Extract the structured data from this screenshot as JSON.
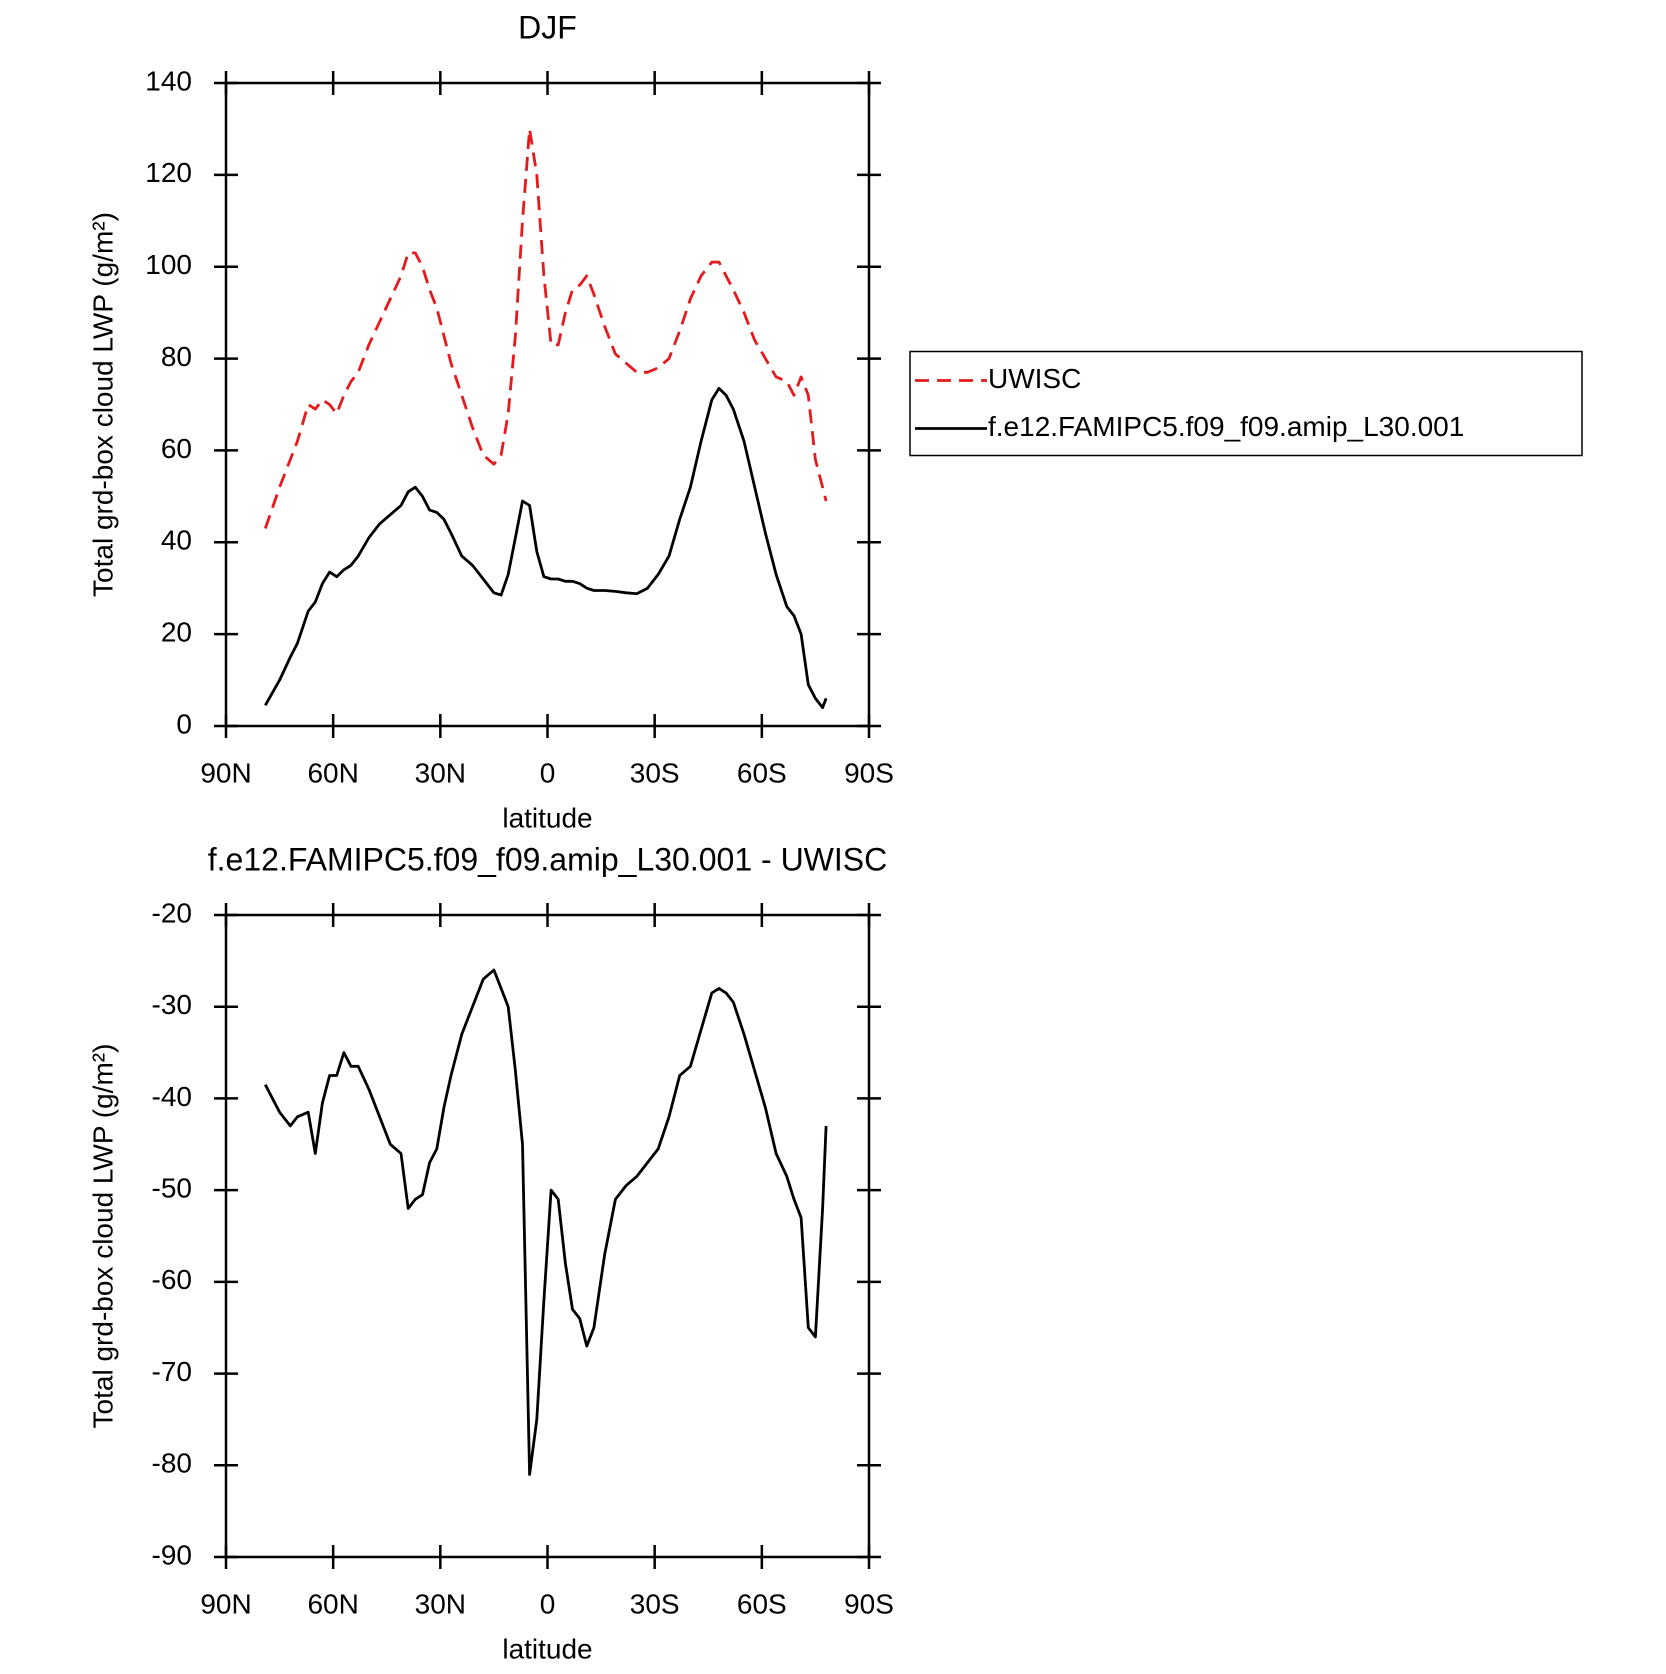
{
  "chart_data": [
    {
      "type": "line",
      "title": "DJF",
      "xlabel": "latitude",
      "ylabel": "Total grd-box cloud LWP (g/m²)",
      "x": [
        79,
        75,
        72,
        70,
        67,
        65,
        63,
        61,
        59,
        57,
        55,
        53,
        50,
        47,
        44,
        41,
        39,
        37,
        35,
        33,
        31,
        29,
        27,
        24,
        21,
        18,
        15,
        13,
        11,
        9,
        7,
        5,
        3,
        1,
        -1,
        -3,
        -5,
        -7,
        -9,
        -11,
        -13,
        -16,
        -19,
        -22,
        -25,
        -28,
        -31,
        -34,
        -37,
        -40,
        -43,
        -46,
        -48,
        -50,
        -52,
        -55,
        -58,
        -61,
        -64,
        -67,
        -69,
        -71,
        -73,
        -75,
        -77,
        -78
      ],
      "series": [
        {
          "name": "UWISC",
          "color": "#e41a1c",
          "dashed": true,
          "values": [
            43,
            52,
            58,
            62,
            70,
            69,
            71,
            70,
            68,
            72,
            75,
            77,
            83,
            88,
            93,
            98,
            103,
            103,
            100,
            95,
            91,
            85,
            79,
            72,
            65,
            59,
            57,
            59,
            68,
            85,
            110,
            130,
            120,
            98,
            83,
            83,
            90,
            95,
            96,
            98,
            94,
            87,
            81,
            79,
            77,
            77,
            78,
            80,
            86,
            93,
            98,
            101,
            101,
            98,
            95,
            90,
            84,
            80,
            76,
            75,
            72,
            76,
            72,
            58,
            52,
            49
          ]
        },
        {
          "name": "f.e12.FAMIPC5.f09_f09.amip_L30.001",
          "color": "#000000",
          "dashed": false,
          "values": [
            4.5,
            10,
            15,
            18,
            25,
            27,
            31,
            33.5,
            32.5,
            34,
            35,
            37,
            41,
            44,
            46,
            48,
            51,
            52,
            50,
            47,
            46.5,
            45,
            42,
            37,
            35,
            32,
            29,
            28.5,
            33,
            41,
            49,
            48,
            38,
            32.5,
            32,
            32,
            31.5,
            31.5,
            31,
            30,
            29.5,
            29.5,
            29.3,
            29,
            28.8,
            30,
            33,
            37,
            45,
            52,
            62,
            71,
            73.5,
            72,
            69,
            62,
            52,
            42,
            33,
            26,
            24,
            20,
            9,
            6,
            4,
            6
          ]
        }
      ],
      "xlim": [
        90,
        -90
      ],
      "xticks": [
        {
          "value": 90,
          "label": "90N"
        },
        {
          "value": 60,
          "label": "60N"
        },
        {
          "value": 30,
          "label": "30N"
        },
        0,
        {
          "value": -30,
          "label": "30S"
        },
        {
          "value": -60,
          "label": "60S"
        },
        {
          "value": -90,
          "label": "90S"
        }
      ],
      "ylim": [
        0,
        140
      ],
      "yticks": [
        0,
        20,
        40,
        60,
        80,
        100,
        120,
        140
      ],
      "legend": "right"
    },
    {
      "type": "line",
      "title": "f.e12.FAMIPC5.f09_f09.amip_L30.001 - UWISC",
      "xlabel": "latitude",
      "ylabel": "Total grd-box cloud LWP (g/m²)",
      "x": [
        79,
        75,
        72,
        70,
        67,
        65,
        63,
        61,
        59,
        57,
        55,
        53,
        50,
        47,
        44,
        41,
        39,
        37,
        35,
        33,
        31,
        29,
        27,
        24,
        21,
        18,
        15,
        13,
        11,
        9,
        7,
        5,
        3,
        1,
        -1,
        -3,
        -5,
        -7,
        -9,
        -11,
        -13,
        -16,
        -19,
        -22,
        -25,
        -28,
        -31,
        -34,
        -37,
        -40,
        -43,
        -46,
        -48,
        -50,
        -52,
        -55,
        -58,
        -61,
        -64,
        -67,
        -69,
        -71,
        -73,
        -75,
        -77,
        -78
      ],
      "series": [
        {
          "color": "#000000",
          "dashed": false,
          "values": [
            -38.5,
            -41.5,
            -43,
            -42,
            -41.5,
            -46,
            -40.5,
            -37.5,
            -37.5,
            -35,
            -36.5,
            -36.5,
            -39,
            -42,
            -45,
            -46,
            -52,
            -51,
            -50.5,
            -47,
            -45.5,
            -41,
            -37.5,
            -33,
            -30,
            -27,
            -26,
            -28,
            -30,
            -37,
            -45,
            -81,
            -75,
            -62,
            -50,
            -51,
            -58,
            -63,
            -64,
            -67,
            -65,
            -57,
            -51,
            -49.5,
            -48.5,
            -47,
            -45.5,
            -42,
            -37.5,
            -36.5,
            -32.5,
            -28.5,
            -28,
            -28.5,
            -29.5,
            -33,
            -37,
            -41,
            -46,
            -48.5,
            -51,
            -53,
            -65,
            -66,
            -52,
            -43
          ]
        }
      ],
      "xlim": [
        90,
        -90
      ],
      "xticks": [
        {
          "value": 90,
          "label": "90N"
        },
        {
          "value": 60,
          "label": "60N"
        },
        {
          "value": 30,
          "label": "30N"
        },
        0,
        {
          "value": -30,
          "label": "30S"
        },
        {
          "value": -60,
          "label": "60S"
        },
        {
          "value": -90,
          "label": "90S"
        }
      ],
      "ylim": [
        -90,
        -20
      ],
      "yticks": [
        -90,
        -80,
        -70,
        -60,
        -50,
        -40,
        -30,
        -20
      ]
    }
  ]
}
